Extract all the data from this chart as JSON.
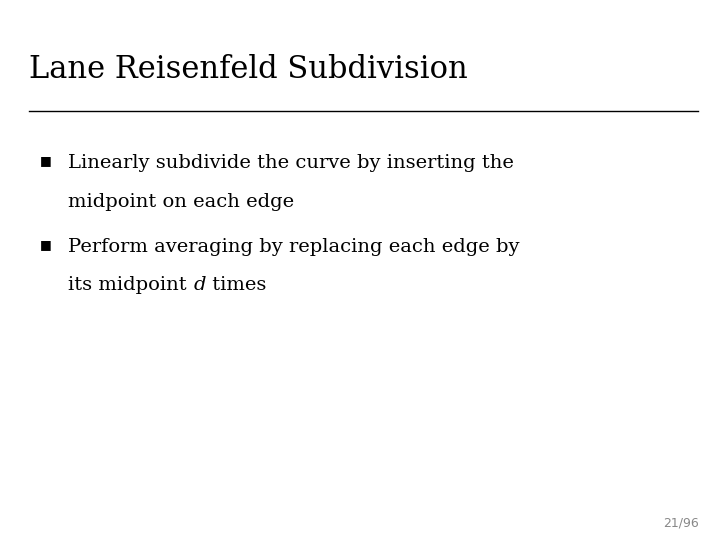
{
  "title": "Lane Reisenfeld Subdivision",
  "background_color": "#ffffff",
  "title_fontsize": 22,
  "title_font": "serif",
  "title_color": "#000000",
  "line_color": "#000000",
  "bullet_color": "#000000",
  "bullet_size": 9,
  "bullet1_line1": "Linearly subdivide the curve by inserting the",
  "bullet1_line2": "midpoint on each edge",
  "bullet2_line1": "Perform averaging by replacing each edge by",
  "bullet2_line2_normal": "its midpoint ",
  "bullet2_line2_italic": "d",
  "bullet2_line2_end": " times",
  "body_fontsize": 14,
  "body_font": "serif",
  "body_color": "#000000",
  "page_number": "21/96",
  "page_number_fontsize": 9,
  "page_number_color": "#888888"
}
